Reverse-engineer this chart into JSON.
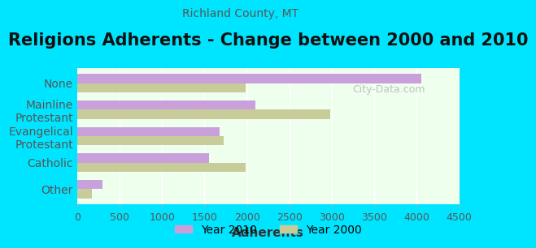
{
  "title": "Religions Adherents - Change between 2000 and 2010",
  "subtitle": "Richland County, MT",
  "xlabel": "Adherents",
  "categories": [
    "Other",
    "Catholic",
    "Evangelical\nProtestant",
    "Mainline\nProtestant",
    "None"
  ],
  "values_2010": [
    300,
    1550,
    1680,
    2100,
    4050
  ],
  "values_2000": [
    170,
    1980,
    1730,
    2980,
    1980
  ],
  "color_2010": "#c9a0dc",
  "color_2000": "#c8cc99",
  "bg_outer": "#00e5ff",
  "bg_plot": "#eeffee",
  "xlim": [
    0,
    4500
  ],
  "xticks": [
    0,
    500,
    1000,
    1500,
    2000,
    2500,
    3000,
    3500,
    4000,
    4500
  ],
  "title_fontsize": 15,
  "subtitle_fontsize": 10,
  "xlabel_fontsize": 11,
  "legend_fontsize": 10,
  "tick_fontsize": 9,
  "label_fontsize": 10
}
